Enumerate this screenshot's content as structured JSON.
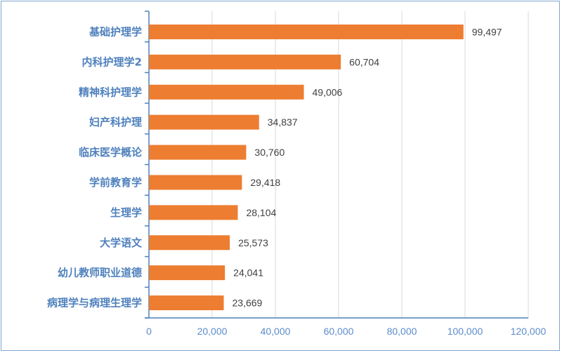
{
  "chart_data": {
    "type": "bar",
    "orientation": "horizontal",
    "categories": [
      "基础护理学",
      "内科护理学2",
      "精神科护理学",
      "妇产科护理",
      "临床医学概论",
      "学前教育学",
      "生理学",
      "大学语文",
      "幼儿教师职业道德",
      "病理学与病理生理学"
    ],
    "values": [
      99497,
      60704,
      49006,
      34837,
      30760,
      29418,
      28104,
      25573,
      24041,
      23669
    ],
    "value_labels": [
      "99,497",
      "60,704",
      "49,006",
      "34,837",
      "30,760",
      "29,418",
      "28,104",
      "25,573",
      "24,041",
      "23,669"
    ],
    "xlim": [
      0,
      120000
    ],
    "x_ticks": [
      "0",
      "20,000",
      "40,000",
      "60,000",
      "80,000",
      "100,000",
      "120,000"
    ],
    "grid": true,
    "title": "",
    "xlabel": "",
    "ylabel": "",
    "colors": {
      "bar": "#ed7d31",
      "category_text": "#4f81bd",
      "axis": "#4f81bd",
      "grid": "#d9d9d9"
    }
  }
}
